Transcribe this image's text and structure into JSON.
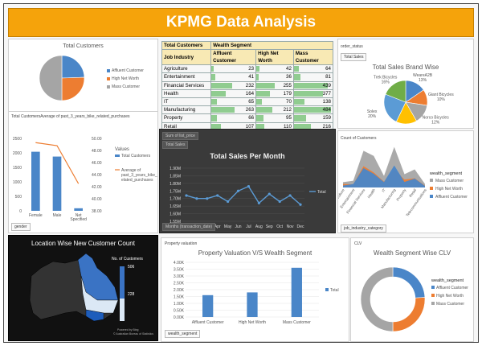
{
  "header": {
    "title": "KPMG Data Analysis"
  },
  "total_customers": {
    "title": "Total Customers",
    "legend": [
      "Affluent Customer",
      "High Net Worth",
      "Mass Customer"
    ],
    "colors": [
      "#4a86c8",
      "#ed7d31",
      "#a5a5a5"
    ],
    "chart_data": {
      "type": "pie",
      "labels": [
        "Affluent Customer",
        "High Net Worth",
        "Mass Customer"
      ],
      "values": [
        979,
        1021,
        2000
      ]
    }
  },
  "wealth_table": {
    "h1": "Total Customers",
    "h2": "Wealth Segment",
    "col_job": "Job Industry",
    "col_a": "Affluent Customer",
    "col_h": "High Net Worth",
    "col_m": "Mass Customer",
    "rows": [
      {
        "name": "Agriculture",
        "a": "23",
        "h": "42",
        "m": "64",
        "av": 23,
        "hv": 42,
        "mv": 64
      },
      {
        "name": "Entertainment",
        "a": "41",
        "h": "36",
        "m": "81",
        "av": 41,
        "hv": 36,
        "mv": 81
      },
      {
        "name": "Financial Services",
        "a": "232",
        "h": "255",
        "m": "439",
        "av": 232,
        "hv": 255,
        "mv": 439
      },
      {
        "name": "Health",
        "a": "164",
        "h": "179",
        "m": "377",
        "av": 164,
        "hv": 179,
        "mv": 377
      },
      {
        "name": "IT",
        "a": "65",
        "h": "70",
        "m": "138",
        "av": 65,
        "hv": 70,
        "mv": 138
      },
      {
        "name": "Manufacturing",
        "a": "263",
        "h": "212",
        "m": "484",
        "av": 263,
        "hv": 212,
        "mv": 484
      },
      {
        "name": "Property",
        "a": "66",
        "h": "95",
        "m": "159",
        "av": 66,
        "hv": 95,
        "mv": 159
      },
      {
        "name": "Retail",
        "a": "107",
        "h": "110",
        "m": "216",
        "av": 107,
        "hv": 110,
        "mv": 216
      },
      {
        "name": "Telecommunications",
        "a": "18",
        "h": "22",
        "m": "42",
        "av": 18,
        "hv": 22,
        "mv": 42
      }
    ],
    "grand": {
      "name": "Grand Total",
      "a": "979",
      "h": "1021",
      "m": "2000"
    }
  },
  "brand": {
    "filter_label": "order_status",
    "filter_btn": "Total Sales",
    "title": "Total Sales Brand Wise",
    "colors": [
      "#4a86c8",
      "#ed7d31",
      "#a5a5a5",
      "#ffc000",
      "#5b9bd5",
      "#70ad47"
    ],
    "labels": [
      "WeareA2B\n13%",
      "Giant Bicycles\n10%",
      "Norco Bicycles\n12%",
      "OHM Cycles\n13%",
      "Solex\n20%",
      "Trek Bicycles\n16%"
    ],
    "chart_data": {
      "type": "pie",
      "labels": [
        "WeareA2B",
        "Giant Bicycles",
        "Norco Bicycles",
        "OHM Cycles",
        "Solex",
        "Trek Bicycles"
      ],
      "values": [
        13,
        10,
        12,
        13,
        20,
        16
      ]
    }
  },
  "gender_chart": {
    "title": "Total CustomersAverage of past_3_years_bike_related_purchases",
    "values_title": "Values",
    "legend": [
      "Total Customers",
      "Average of past_3_years_bike_r elated_purchases"
    ],
    "field": "gender",
    "chart_data": {
      "type": "bar",
      "categories": [
        "Female",
        "Male",
        "Net Specified"
      ],
      "series": [
        {
          "name": "Total Customers",
          "values": [
            2039,
            1873,
            88
          ]
        },
        {
          "name": "Average of past_3_years_bike_related_purchases",
          "values": [
            49.3,
            48.8,
            42.5
          ]
        }
      ],
      "ylim": [
        0,
        2500
      ],
      "y2lim": [
        38,
        50
      ]
    },
    "yticks": [
      "0",
      "500",
      "1000",
      "1500",
      "2000",
      "2500"
    ],
    "y2ticks": [
      "38.00",
      "40.00",
      "42.00",
      "44.00",
      "46.00",
      "48.00",
      "50.00"
    ]
  },
  "sales_month": {
    "btn1": "Sum of list_price",
    "btn2": "Total Sales",
    "title": "Total Sales Per Month",
    "legend": "Total",
    "field": "Months (transaction_date)",
    "chart_data": {
      "type": "line",
      "categories": [
        "Jan",
        "Feb",
        "Mar",
        "Apr",
        "May",
        "Jun",
        "Jul",
        "Aug",
        "Sep",
        "Oct",
        "Nov",
        "Dec"
      ],
      "series": [
        {
          "name": "Total",
          "values": [
            1.72,
            1.7,
            1.7,
            1.72,
            1.68,
            1.75,
            1.78,
            1.67,
            1.73,
            1.68,
            1.72,
            1.66
          ]
        }
      ],
      "ylim": [
        1.55,
        1.9
      ],
      "ylabel": ""
    },
    "yticks": [
      "1.55M",
      "1.60M",
      "1.65M",
      "1.70M",
      "1.75M",
      "1.80M",
      "1.85M",
      "1.90M"
    ]
  },
  "job_chart": {
    "title": "Count of Customers",
    "legend_title": "wealth_segment",
    "legend": [
      "Mass Customer",
      "High Net Worth",
      "Affluent Customer"
    ],
    "colors": [
      "#a5a5a5",
      "#ed7d31",
      "#4a86c8"
    ],
    "field": "job_industry_category",
    "chart_data": {
      "type": "area",
      "categories": [
        "Agriculture",
        "Entertainment",
        "Financial Services",
        "Health",
        "IT",
        "Manufacturing",
        "Property",
        "Retail",
        "Telecommunications"
      ],
      "series": [
        {
          "name": "Mass Customer",
          "values": [
            64,
            81,
            439,
            377,
            138,
            484,
            159,
            216,
            42
          ]
        },
        {
          "name": "High Net Worth",
          "values": [
            42,
            36,
            255,
            179,
            70,
            212,
            95,
            110,
            22
          ]
        },
        {
          "name": "Affluent Customer",
          "values": [
            23,
            41,
            232,
            164,
            65,
            263,
            66,
            107,
            18
          ]
        }
      ]
    }
  },
  "map": {
    "title": "Location Wise New Customer Count",
    "legend_title": "No. of Customers",
    "max": "506",
    "mid": "228",
    "credit1": "Powered by Bing",
    "credit2": "© Australian Bureau of Statistics"
  },
  "property": {
    "filter": "Property valuation",
    "title": "Property Valuation V/S Wealth Segment",
    "field": "wealth_segment",
    "legend": "Total",
    "chart_data": {
      "type": "bar",
      "categories": [
        "Affluent Customer",
        "High Net Worth",
        "Mass Customer"
      ],
      "values": [
        1.6,
        1.8,
        3.6
      ],
      "ylim": [
        0,
        4
      ]
    },
    "yticks": [
      "0.00K",
      "0.50K",
      "1.00K",
      "1.50K",
      "2.00K",
      "2.50K",
      "3.00K",
      "3.50K",
      "4.00K"
    ]
  },
  "clv": {
    "filter": "CLV",
    "title": "Wealth Segment Wise CLV",
    "legend_title": "wealth_segment",
    "legend": [
      "Affluent Customer",
      "High Net Worth",
      "Mass Customer"
    ],
    "colors": [
      "#4a86c8",
      "#ed7d31",
      "#a5a5a5"
    ],
    "chart_data": {
      "type": "pie",
      "labels": [
        "Affluent Customer",
        "High Net Worth",
        "Mass Customer"
      ],
      "values": [
        24,
        26,
        50
      ]
    }
  }
}
